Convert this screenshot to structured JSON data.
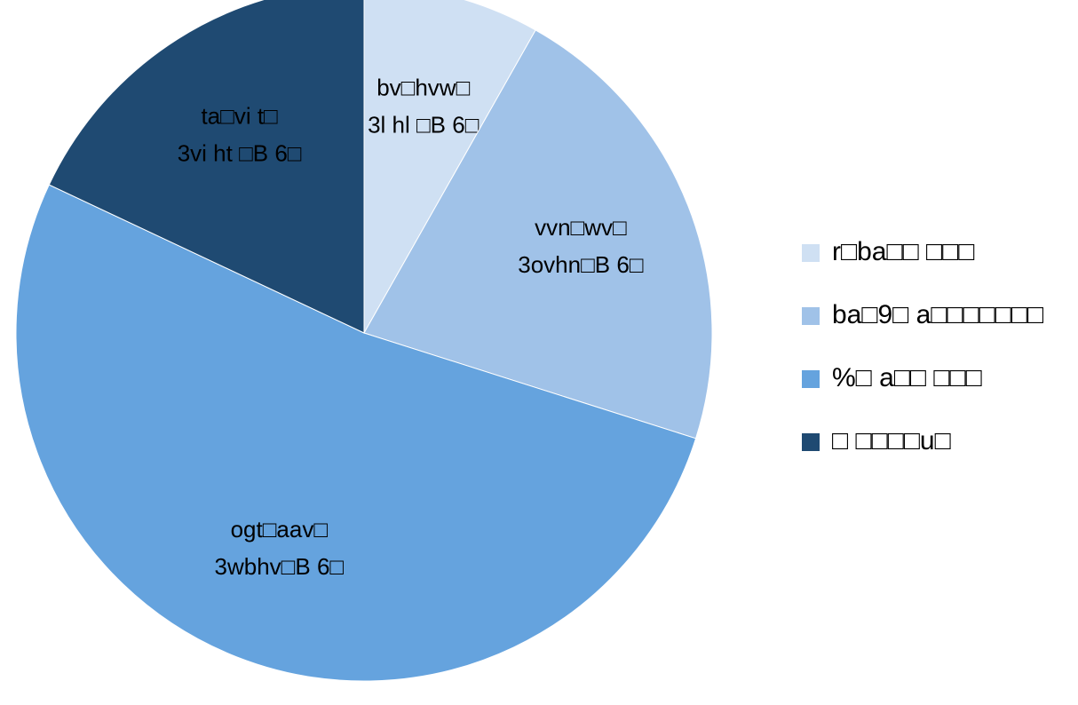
{
  "chart_data": {
    "type": "pie",
    "categories": [
      "r□ba□□ □□□",
      "ba□9□ a□□□□□□□",
      "%□ a□□ □□□",
      "□ □□□□u□"
    ],
    "values": [
      8.2,
      21.7,
      52.1,
      18.0
    ],
    "colors": [
      "#cfe0f3",
      "#a0c2e8",
      "#65a3de",
      "#1f4a72"
    ],
    "data_labels": [
      [
        "bv□hvw□",
        "3l hl □B 6□"
      ],
      [
        "vvn□wv□",
        "3ovhn□B 6□"
      ],
      [
        "ogt□aav□",
        "3wbhv□B 6□"
      ],
      [
        "ta□vi t□",
        "3vi ht □B 6□"
      ]
    ],
    "legend": "right"
  }
}
